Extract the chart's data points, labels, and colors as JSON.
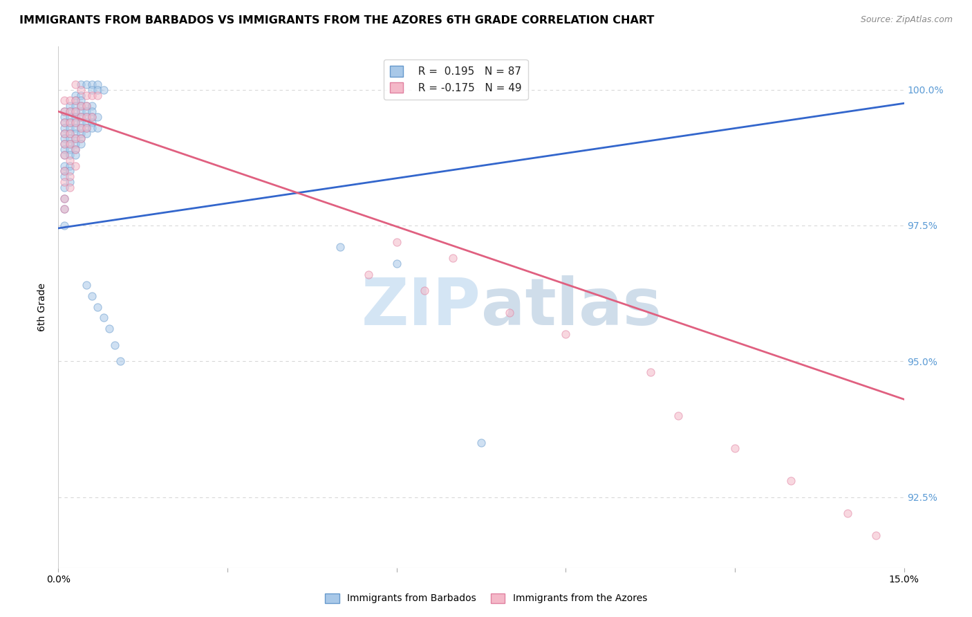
{
  "title": "IMMIGRANTS FROM BARBADOS VS IMMIGRANTS FROM THE AZORES 6TH GRADE CORRELATION CHART",
  "source": "Source: ZipAtlas.com",
  "ylabel": "6th Grade",
  "ytick_labels": [
    "92.5%",
    "95.0%",
    "97.5%",
    "100.0%"
  ],
  "ytick_values": [
    0.925,
    0.95,
    0.975,
    1.0
  ],
  "xlim": [
    0.0,
    0.15
  ],
  "ylim": [
    0.912,
    1.008
  ],
  "legend_blue_r": "R =  0.195",
  "legend_blue_n": "N = 87",
  "legend_pink_r": "R = -0.175",
  "legend_pink_n": "N = 49",
  "blue_scatter_x": [
    0.004,
    0.005,
    0.006,
    0.007,
    0.006,
    0.007,
    0.008,
    0.003,
    0.004,
    0.003,
    0.004,
    0.002,
    0.003,
    0.004,
    0.005,
    0.006,
    0.001,
    0.002,
    0.003,
    0.004,
    0.005,
    0.006,
    0.001,
    0.002,
    0.003,
    0.004,
    0.005,
    0.006,
    0.007,
    0.001,
    0.002,
    0.003,
    0.004,
    0.005,
    0.006,
    0.001,
    0.002,
    0.003,
    0.004,
    0.005,
    0.006,
    0.007,
    0.001,
    0.002,
    0.003,
    0.004,
    0.005,
    0.001,
    0.002,
    0.003,
    0.004,
    0.001,
    0.002,
    0.003,
    0.004,
    0.001,
    0.002,
    0.003,
    0.001,
    0.002,
    0.003,
    0.001,
    0.002,
    0.001,
    0.002,
    0.001,
    0.002,
    0.001,
    0.001,
    0.001,
    0.001,
    0.05,
    0.06,
    0.075,
    0.005,
    0.006,
    0.007,
    0.008,
    0.009,
    0.01,
    0.011
  ],
  "blue_scatter_y": [
    1.001,
    1.001,
    1.001,
    1.001,
    1.0,
    1.0,
    1.0,
    0.999,
    0.999,
    0.998,
    0.998,
    0.997,
    0.997,
    0.997,
    0.997,
    0.997,
    0.996,
    0.996,
    0.996,
    0.996,
    0.996,
    0.996,
    0.995,
    0.995,
    0.995,
    0.995,
    0.995,
    0.995,
    0.995,
    0.994,
    0.994,
    0.994,
    0.994,
    0.994,
    0.994,
    0.993,
    0.993,
    0.993,
    0.993,
    0.993,
    0.993,
    0.993,
    0.992,
    0.992,
    0.992,
    0.992,
    0.992,
    0.991,
    0.991,
    0.991,
    0.991,
    0.99,
    0.99,
    0.99,
    0.99,
    0.989,
    0.989,
    0.989,
    0.988,
    0.988,
    0.988,
    0.986,
    0.986,
    0.985,
    0.985,
    0.984,
    0.983,
    0.982,
    0.98,
    0.978,
    0.975,
    0.971,
    0.968,
    0.935,
    0.964,
    0.962,
    0.96,
    0.958,
    0.956,
    0.953,
    0.95
  ],
  "pink_scatter_x": [
    0.003,
    0.004,
    0.005,
    0.006,
    0.007,
    0.001,
    0.002,
    0.003,
    0.004,
    0.005,
    0.001,
    0.002,
    0.003,
    0.004,
    0.005,
    0.006,
    0.001,
    0.002,
    0.003,
    0.004,
    0.005,
    0.001,
    0.002,
    0.003,
    0.004,
    0.001,
    0.002,
    0.003,
    0.001,
    0.002,
    0.003,
    0.001,
    0.002,
    0.001,
    0.002,
    0.001,
    0.001,
    0.06,
    0.07,
    0.055,
    0.065,
    0.08,
    0.09,
    0.105,
    0.11,
    0.12,
    0.13,
    0.14,
    0.145
  ],
  "pink_scatter_y": [
    1.001,
    1.0,
    0.999,
    0.999,
    0.999,
    0.998,
    0.998,
    0.998,
    0.997,
    0.997,
    0.996,
    0.996,
    0.996,
    0.995,
    0.995,
    0.995,
    0.994,
    0.994,
    0.994,
    0.993,
    0.993,
    0.992,
    0.992,
    0.991,
    0.991,
    0.99,
    0.99,
    0.989,
    0.988,
    0.987,
    0.986,
    0.985,
    0.984,
    0.983,
    0.982,
    0.98,
    0.978,
    0.972,
    0.969,
    0.966,
    0.963,
    0.959,
    0.955,
    0.948,
    0.94,
    0.934,
    0.928,
    0.922,
    0.918
  ],
  "blue_line_x": [
    0.0,
    0.15
  ],
  "blue_line_y": [
    0.9745,
    0.9975
  ],
  "pink_line_x": [
    0.0,
    0.15
  ],
  "pink_line_y": [
    0.996,
    0.943
  ],
  "watermark_zip": "ZIP",
  "watermark_atlas": "atlas",
  "scatter_size": 65,
  "scatter_alpha": 0.55,
  "blue_color": "#a8c8e8",
  "blue_edge": "#6699cc",
  "pink_color": "#f4b8c8",
  "pink_edge": "#e080a0",
  "blue_line_color": "#3366cc",
  "pink_line_color": "#e06080",
  "grid_color": "#d8d8d8",
  "background_color": "#ffffff",
  "title_fontsize": 11.5,
  "label_fontsize": 10,
  "tick_fontsize": 10,
  "right_tick_color": "#5b9bd5"
}
